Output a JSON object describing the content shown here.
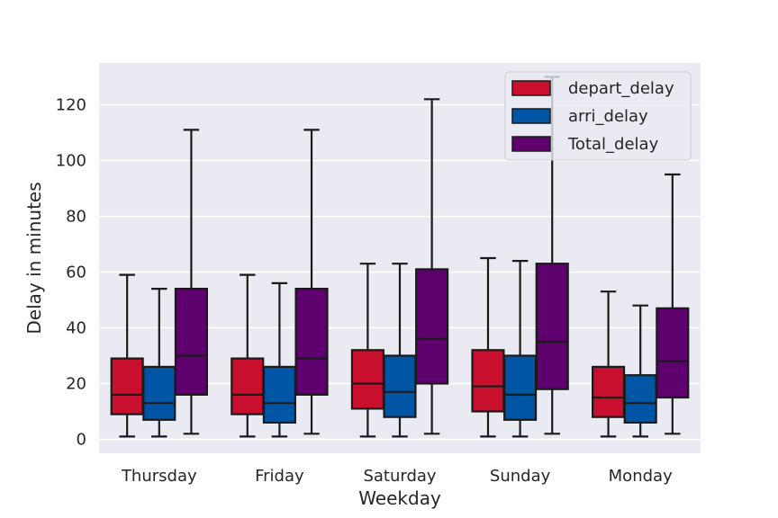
{
  "chart_data": {
    "type": "box",
    "title": "",
    "xlabel": "Weekday",
    "ylabel": "Delay in minutes",
    "ylim": [
      -5,
      135
    ],
    "yticks": [
      0,
      20,
      40,
      60,
      80,
      100,
      120
    ],
    "categories": [
      "Thursday",
      "Friday",
      "Saturday",
      "Sunday",
      "Monday"
    ],
    "grid": true,
    "legend_position": "top-right",
    "series": [
      {
        "name": "depart_delay",
        "color": "#C8102E",
        "boxes": [
          {
            "whisker_low": 1,
            "q1": 9,
            "median": 16,
            "q3": 29,
            "whisker_high": 59
          },
          {
            "whisker_low": 1,
            "q1": 9,
            "median": 16,
            "q3": 29,
            "whisker_high": 59
          },
          {
            "whisker_low": 1,
            "q1": 11,
            "median": 20,
            "q3": 32,
            "whisker_high": 63
          },
          {
            "whisker_low": 1,
            "q1": 10,
            "median": 19,
            "q3": 32,
            "whisker_high": 65
          },
          {
            "whisker_low": 1,
            "q1": 8,
            "median": 15,
            "q3": 26,
            "whisker_high": 53
          }
        ]
      },
      {
        "name": "arri_delay",
        "color": "#0055A4",
        "boxes": [
          {
            "whisker_low": 1,
            "q1": 7,
            "median": 13,
            "q3": 26,
            "whisker_high": 54
          },
          {
            "whisker_low": 1,
            "q1": 6,
            "median": 13,
            "q3": 26,
            "whisker_high": 56
          },
          {
            "whisker_low": 1,
            "q1": 8,
            "median": 17,
            "q3": 30,
            "whisker_high": 63
          },
          {
            "whisker_low": 1,
            "q1": 7,
            "median": 16,
            "q3": 30,
            "whisker_high": 64
          },
          {
            "whisker_low": 1,
            "q1": 6,
            "median": 13,
            "q3": 23,
            "whisker_high": 48
          }
        ]
      },
      {
        "name": "Total_delay",
        "color": "#5E006E",
        "boxes": [
          {
            "whisker_low": 2,
            "q1": 16,
            "median": 30,
            "q3": 54,
            "whisker_high": 111
          },
          {
            "whisker_low": 2,
            "q1": 16,
            "median": 29,
            "q3": 54,
            "whisker_high": 111
          },
          {
            "whisker_low": 2,
            "q1": 20,
            "median": 36,
            "q3": 61,
            "whisker_high": 122
          },
          {
            "whisker_low": 2,
            "q1": 18,
            "median": 35,
            "q3": 63,
            "whisker_high": 130
          },
          {
            "whisker_low": 2,
            "q1": 15,
            "median": 28,
            "q3": 47,
            "whisker_high": 95
          }
        ]
      }
    ]
  }
}
